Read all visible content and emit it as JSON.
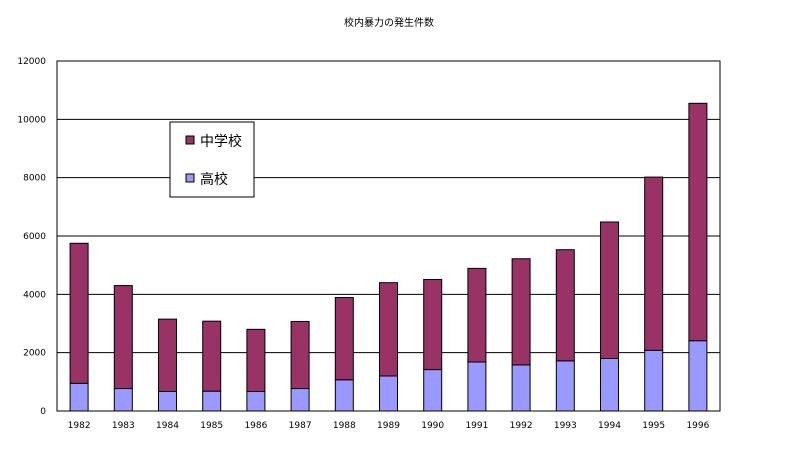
{
  "chart_data": {
    "type": "bar",
    "stacked": true,
    "title": "校内暴力の発生件数",
    "xlabel": "",
    "ylabel": "",
    "categories": [
      "1982",
      "1983",
      "1984",
      "1985",
      "1986",
      "1987",
      "1988",
      "1989",
      "1990",
      "1991",
      "1992",
      "1993",
      "1994",
      "1995",
      "1996"
    ],
    "series": [
      {
        "name": "高校",
        "color": "#9999ff",
        "values": [
          950,
          770,
          670,
          680,
          670,
          770,
          1070,
          1200,
          1420,
          1680,
          1580,
          1720,
          1800,
          2080,
          2410
        ]
      },
      {
        "name": "中学校",
        "color": "#993366",
        "values": [
          4800,
          3530,
          2480,
          2400,
          2130,
          2300,
          2820,
          3200,
          3090,
          3210,
          3640,
          3810,
          4680,
          5940,
          8140
        ]
      }
    ],
    "yticks": [
      0,
      2000,
      4000,
      6000,
      8000,
      10000,
      12000
    ],
    "ylim": [
      0,
      12000
    ],
    "grid": true,
    "legend_position": "top-left"
  }
}
